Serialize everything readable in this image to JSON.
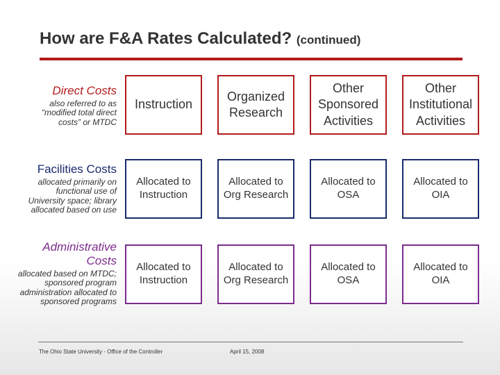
{
  "title": {
    "main": "How are F&A Rates Calculated?",
    "sub": "(continued)"
  },
  "rows": {
    "direct": {
      "head": "Direct Costs",
      "desc": [
        "also referred to as",
        "“modified total direct",
        "costs” or MTDC"
      ]
    },
    "facilities": {
      "head": "Facilities Costs",
      "desc": [
        "allocated primarily on",
        "functional use of",
        "University space; library",
        "allocated based on use"
      ]
    },
    "admin": {
      "head": [
        "Administrative",
        "Costs"
      ],
      "desc": [
        "allocated based on MTDC;",
        "sponsored program",
        "administration allocated to",
        "sponsored programs"
      ]
    }
  },
  "grid": {
    "headers": [
      [
        "Instruction"
      ],
      [
        "Organized",
        "Research"
      ],
      [
        "Other",
        "Sponsored",
        "Activities"
      ],
      [
        "Other",
        "Institutional",
        "Activities"
      ]
    ],
    "facilities": [
      [
        "Allocated to",
        "Instruction"
      ],
      [
        "Allocated to",
        "Org Research"
      ],
      [
        "Allocated to",
        "OSA"
      ],
      [
        "Allocated to",
        "OIA"
      ]
    ],
    "admin": [
      [
        "Allocated to",
        "Instruction"
      ],
      [
        "Allocated to",
        "Org Research"
      ],
      [
        "Allocated to",
        "OSA"
      ],
      [
        "Allocated to",
        "OIA"
      ]
    ]
  },
  "footer": {
    "org": "The Ohio State University - Office of the Controller",
    "date": "April 15, 2008"
  },
  "colors": {
    "accent": "#b31b1b",
    "navy": "#1a2a6c",
    "purple": "#7b2c8c"
  }
}
